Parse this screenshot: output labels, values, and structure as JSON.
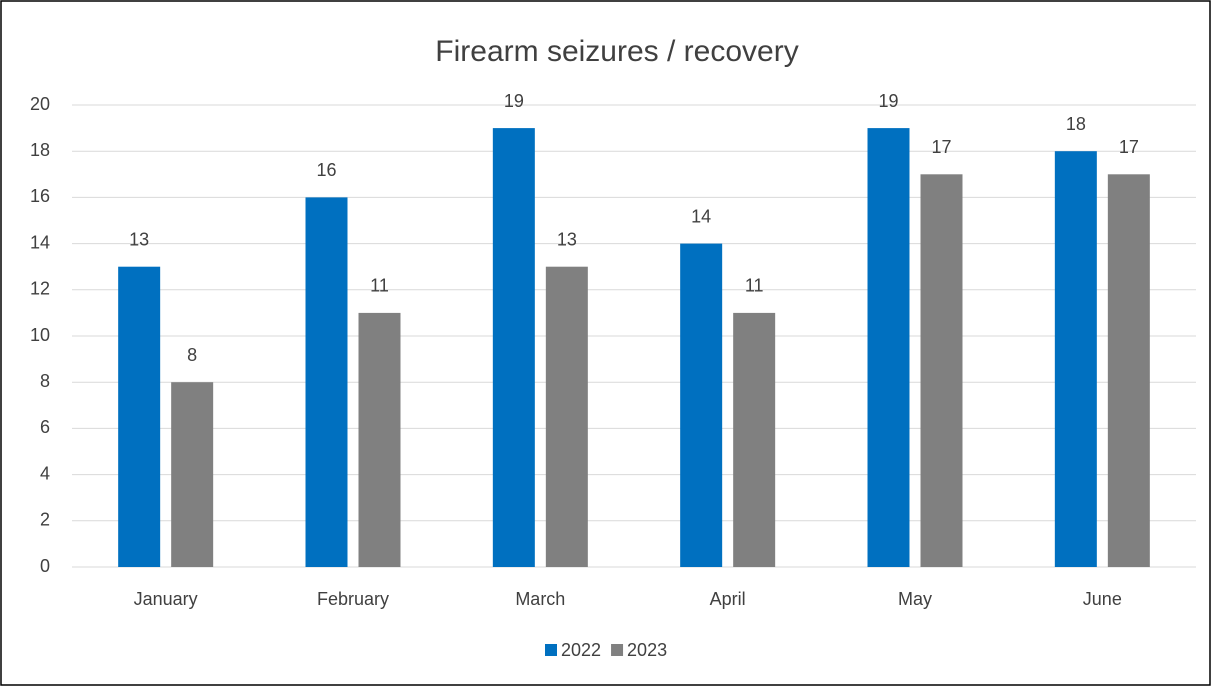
{
  "chart_data": {
    "type": "bar",
    "title": "Firearm seizures / recovery",
    "categories": [
      "January",
      "February",
      "March",
      "April",
      "May",
      "June"
    ],
    "series": [
      {
        "name": "2022",
        "color": "#0070c0",
        "values": [
          13,
          16,
          19,
          14,
          19,
          18
        ]
      },
      {
        "name": "2023",
        "color": "#808080",
        "values": [
          8,
          11,
          13,
          11,
          17,
          17
        ]
      }
    ],
    "ylim": [
      0,
      20
    ],
    "yticks": [
      0,
      2,
      4,
      6,
      8,
      10,
      12,
      14,
      16,
      18,
      20
    ],
    "grid": true,
    "legend": "bottom"
  }
}
